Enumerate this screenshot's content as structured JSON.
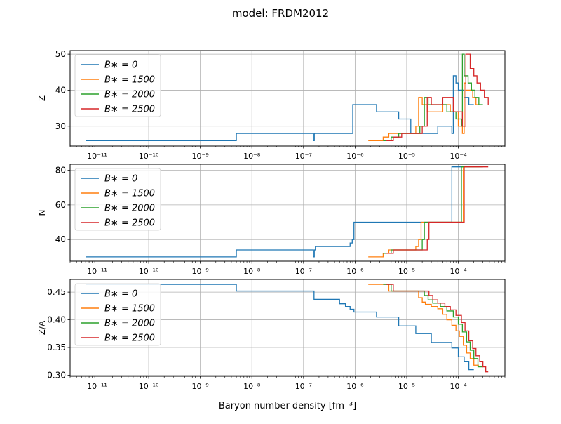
{
  "figure": {
    "title": "model: FRDM2012",
    "xlabel": "Baryon number density [fm⁻³]"
  },
  "legend": [
    {
      "label": "B∗ = 0",
      "color": "#1f77b4"
    },
    {
      "label": "B∗ = 1500",
      "color": "#ff7f0e"
    },
    {
      "label": "B∗ = 2000",
      "color": "#2ca02c"
    },
    {
      "label": "B∗ = 2500",
      "color": "#d62728"
    }
  ],
  "chart_data": [
    {
      "type": "line",
      "title": "",
      "xlabel": "",
      "ylabel": "Z",
      "xscale": "log",
      "xlim": [
        3e-12,
        0.0008
      ],
      "ylim": [
        24.5,
        51
      ],
      "yticks": [
        30,
        40,
        50
      ],
      "xticks": [
        "1e-11",
        "1e-10",
        "1e-9",
        "1e-8",
        "1e-7",
        "1e-6",
        "1e-5",
        "1e-4"
      ],
      "grid": true,
      "legend_position": "upper left",
      "series": [
        {
          "name": "B∗ = 0",
          "color": "#1f77b4",
          "step": true,
          "x": [
            6e-12,
            5e-09,
            1.55e-07,
            1.62e-07,
            1.7e-07,
            9e-07,
            2.6e-06,
            7e-06,
            1.2e-05,
            1.5e-05,
            4e-05,
            7.5e-05,
            8e-05,
            9e-05,
            0.0001,
            0.00013,
            0.00016,
            0.0002
          ],
          "y": [
            26,
            28,
            26,
            28,
            28,
            36,
            34,
            32,
            28,
            28,
            30,
            28,
            44,
            42,
            40,
            38,
            36,
            36
          ]
        },
        {
          "name": "B∗ = 1500",
          "color": "#ff7f0e",
          "step": true,
          "x": [
            1.8e-06,
            3.5e-06,
            4.5e-06,
            7e-06,
            1.5e-05,
            1.7e-05,
            2e-05,
            2.5e-05,
            3e-05,
            5e-05,
            7e-05,
            0.0001,
            0.00012,
            0.00013,
            0.00014,
            0.00016,
            0.00019,
            0.00022,
            0.00025
          ],
          "y": [
            26,
            27,
            28,
            28,
            30,
            38,
            36,
            34,
            34,
            36,
            34,
            30,
            28,
            42,
            40,
            40,
            38,
            36,
            36
          ]
        },
        {
          "name": "B∗ = 2000",
          "color": "#2ca02c",
          "step": true,
          "x": [
            3.5e-06,
            5e-06,
            7e-06,
            1.8e-05,
            2.2e-05,
            2.6e-05,
            3.5e-05,
            6e-05,
            9e-05,
            0.000115,
            0.00012,
            0.00013,
            0.000155,
            0.00018,
            0.00021,
            0.00025,
            0.0003
          ],
          "y": [
            26,
            27,
            28,
            30,
            38,
            36,
            36,
            34,
            32,
            30,
            50,
            44,
            42,
            40,
            38,
            36,
            36
          ]
        },
        {
          "name": "B∗ = 2500",
          "color": "#d62728",
          "step": true,
          "x": [
            4e-06,
            5.5e-06,
            8e-06,
            2e-05,
            2.5e-05,
            3e-05,
            5e-05,
            8e-05,
            0.00012,
            0.00014,
            0.00017,
            0.0002,
            0.00023,
            0.00027,
            0.00032,
            0.00038
          ],
          "y": [
            26,
            27,
            28,
            30,
            38,
            36,
            38,
            34,
            30,
            50,
            46,
            44,
            42,
            40,
            38,
            36
          ]
        }
      ]
    },
    {
      "type": "line",
      "title": "",
      "xlabel": "",
      "ylabel": "N",
      "xscale": "log",
      "xlim": [
        3e-12,
        0.0008
      ],
      "ylim": [
        27.5,
        83.5
      ],
      "yticks": [
        40,
        60,
        80
      ],
      "xticks": [
        "1e-11",
        "1e-10",
        "1e-9",
        "1e-8",
        "1e-7",
        "1e-6",
        "1e-5",
        "1e-4"
      ],
      "grid": true,
      "legend_position": "upper left",
      "series": [
        {
          "name": "B∗ = 0",
          "color": "#1f77b4",
          "step": true,
          "x": [
            6e-12,
            5e-09,
            1.55e-07,
            1.62e-07,
            1.7e-07,
            8e-07,
            8.8e-07,
            9.5e-07,
            7.5e-05,
            0.0002
          ],
          "y": [
            30,
            34,
            30,
            34,
            36,
            38,
            40,
            50,
            82,
            82
          ]
        },
        {
          "name": "B∗ = 1500",
          "color": "#ff7f0e",
          "step": true,
          "x": [
            1.8e-06,
            3.5e-06,
            4.5e-06,
            1.5e-05,
            1.7e-05,
            1.9e-05,
            0.000125,
            0.00025
          ],
          "y": [
            30,
            32,
            34,
            36,
            40,
            50,
            82,
            82
          ]
        },
        {
          "name": "B∗ = 2000",
          "color": "#2ca02c",
          "step": true,
          "x": [
            3.5e-06,
            5e-06,
            2e-05,
            2.2e-05,
            0.000115,
            0.0003
          ],
          "y": [
            32,
            34,
            40,
            50,
            82,
            82
          ]
        },
        {
          "name": "B∗ = 2500",
          "color": "#d62728",
          "step": true,
          "x": [
            4e-06,
            5.5e-06,
            2.5e-05,
            2.7e-05,
            0.00013,
            0.00038
          ],
          "y": [
            32,
            34,
            40,
            50,
            82,
            82
          ]
        }
      ]
    },
    {
      "type": "line",
      "title": "",
      "xlabel": "",
      "ylabel": "Z/A",
      "xscale": "log",
      "xlim": [
        3e-12,
        0.0008
      ],
      "ylim": [
        0.298,
        0.473
      ],
      "yticks": [
        0.3,
        0.35,
        0.4,
        0.45
      ],
      "xticks": [
        "1e-11",
        "1e-10",
        "1e-9",
        "1e-8",
        "1e-7",
        "1e-6",
        "1e-5",
        "1e-4"
      ],
      "grid": true,
      "legend_position": "upper left",
      "series": [
        {
          "name": "B∗ = 0",
          "color": "#1f77b4",
          "step": true,
          "x": [
            6e-12,
            5e-09,
            1.6e-07,
            5e-07,
            6.5e-07,
            8e-07,
            9.5e-07,
            2.6e-06,
            7e-06,
            1.5e-05,
            3e-05,
            7.5e-05,
            0.0001,
            0.00013,
            0.00016,
            0.0002
          ],
          "y": [
            0.464,
            0.452,
            0.437,
            0.429,
            0.424,
            0.419,
            0.414,
            0.405,
            0.389,
            0.375,
            0.359,
            0.349,
            0.333,
            0.325,
            0.31,
            0.31
          ]
        },
        {
          "name": "B∗ = 1500",
          "color": "#ff7f0e",
          "step": true,
          "x": [
            1.8e-06,
            4.5e-06,
            1.7e-05,
            2e-05,
            2.3e-05,
            3e-05,
            4e-05,
            5e-05,
            6e-05,
            7.5e-05,
            9e-05,
            0.000105,
            0.000125,
            0.000145,
            0.00017,
            0.0002,
            0.00025
          ],
          "y": [
            0.464,
            0.452,
            0.44,
            0.432,
            0.428,
            0.424,
            0.42,
            0.41,
            0.4,
            0.39,
            0.38,
            0.37,
            0.354,
            0.34,
            0.33,
            0.318,
            0.318
          ]
        },
        {
          "name": "B∗ = 2000",
          "color": "#2ca02c",
          "step": true,
          "x": [
            3.5e-06,
            5e-06,
            2.2e-05,
            2.6e-05,
            3.2e-05,
            4.5e-05,
            6e-05,
            8e-05,
            0.0001,
            0.00012,
            0.000145,
            0.00017,
            0.0002,
            0.00024,
            0.0003
          ],
          "y": [
            0.464,
            0.452,
            0.444,
            0.436,
            0.43,
            0.424,
            0.416,
            0.405,
            0.392,
            0.378,
            0.36,
            0.345,
            0.33,
            0.315,
            0.315
          ]
        },
        {
          "name": "B∗ = 2500",
          "color": "#d62728",
          "step": true,
          "x": [
            4e-06,
            5.5e-06,
            2.7e-05,
            3.2e-05,
            4e-05,
            5.5e-05,
            7e-05,
            9e-05,
            0.000115,
            0.000135,
            0.00016,
            0.00019,
            0.00022,
            0.00026,
            0.0003,
            0.00034,
            0.00038
          ],
          "y": [
            0.464,
            0.452,
            0.444,
            0.436,
            0.43,
            0.424,
            0.418,
            0.408,
            0.395,
            0.38,
            0.362,
            0.348,
            0.335,
            0.325,
            0.315,
            0.306,
            0.306
          ]
        }
      ]
    }
  ]
}
